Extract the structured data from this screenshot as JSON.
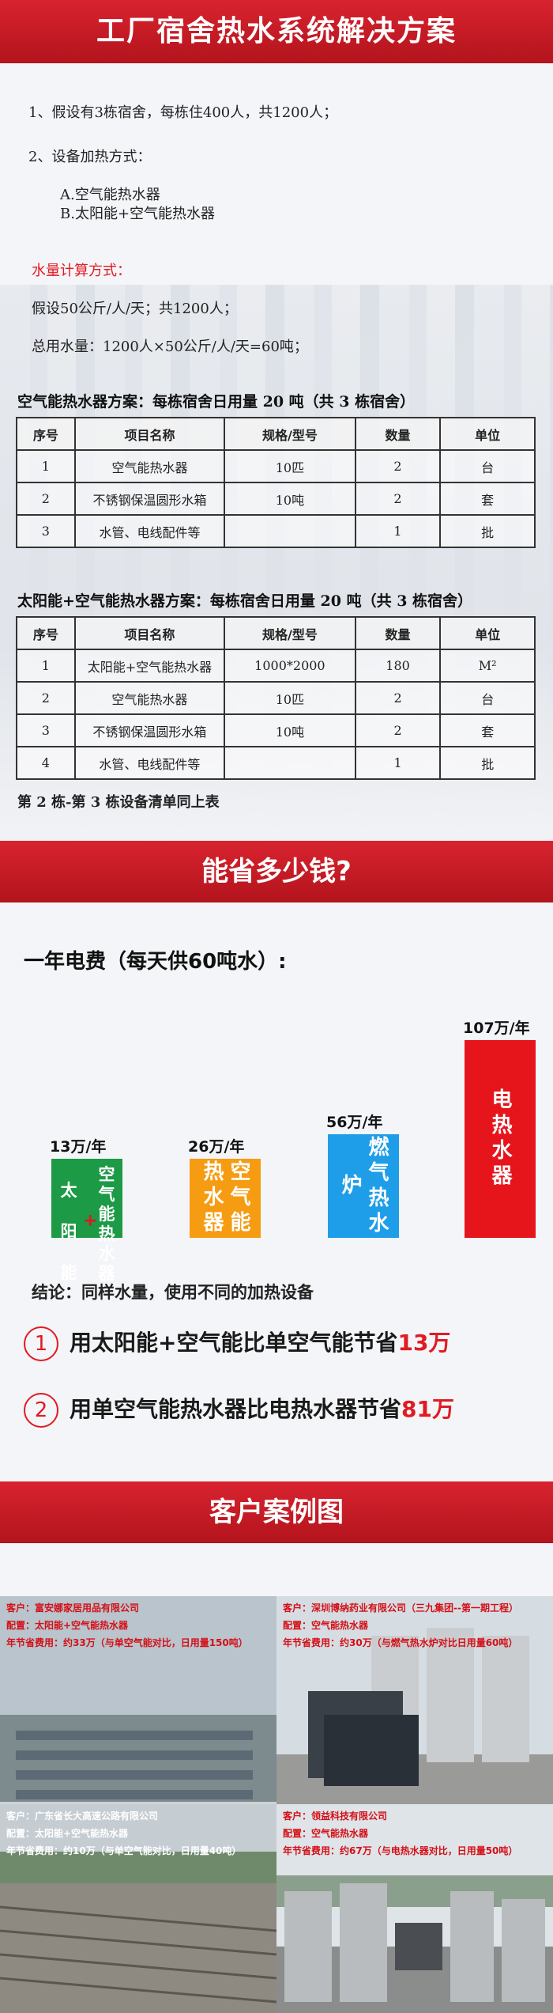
{
  "banners": {
    "top": "工厂宿舍热水系统解决方案",
    "savings": "能省多少钱?",
    "cases": "客户案例图"
  },
  "intro": {
    "line1": "1、假设有3栋宿舍，每栋住400人，共1200人；",
    "line2": "2、设备加热方式：",
    "optA": "A.空气能热水器",
    "optB": "B.太阳能+空气能热水器",
    "calc_title": "水量计算方式：",
    "calc1": "假设50公斤/人/天；共1200人；",
    "calc2": "总用水量：1200人×50公斤/人/天=60吨；"
  },
  "table1": {
    "title": "空气能热水器方案：每栋宿舍日用量 20 吨（共 3 栋宿舍）",
    "headers": [
      "序号",
      "项目名称",
      "规格/型号",
      "数量",
      "单位"
    ],
    "rows": [
      [
        "1",
        "空气能热水器",
        "10匹",
        "2",
        "台"
      ],
      [
        "2",
        "不锈钢保温圆形水箱",
        "10吨",
        "2",
        "套"
      ],
      [
        "3",
        "水管、电线配件等",
        "",
        "1",
        "批"
      ]
    ]
  },
  "table2": {
    "title": "太阳能+空气能热水器方案：每栋宿舍日用量 20 吨（共 3 栋宿舍）",
    "headers": [
      "序号",
      "项目名称",
      "规格/型号",
      "数量",
      "单位"
    ],
    "rows": [
      [
        "1",
        "太阳能+空气能热水器",
        "1000*2000",
        "180",
        "M²"
      ],
      [
        "2",
        "空气能热水器",
        "10匹",
        "2",
        "台"
      ],
      [
        "3",
        "不锈钢保温圆形水箱",
        "10吨",
        "2",
        "套"
      ],
      [
        "4",
        "水管、电线配件等",
        "",
        "1",
        "批"
      ]
    ]
  },
  "note": "第 2 栋-第 3 栋设备清单同上表",
  "fee_title": "一年电费（每天供60吨水）:",
  "chart_data": {
    "type": "bar",
    "categories": [
      "太阳能+空气能热水器",
      "空气能热水器",
      "燃气热水炉",
      "电热水器"
    ],
    "values": [
      13,
      26,
      56,
      107
    ],
    "labels": [
      "13万/年",
      "26万/年",
      "56万/年",
      "107万/年"
    ],
    "colors": [
      "#1c9a46",
      "#f59c12",
      "#1e9ee8",
      "#e6151c"
    ],
    "title": "一年电费（每天供60吨水）:",
    "unit": "万/年"
  },
  "bars": {
    "b1_left": "太阳能",
    "b1_plus": "+",
    "b1_right": "空气能热水器",
    "b2": "空气能热水器",
    "b3": "燃气热水炉",
    "b4": "电热水器"
  },
  "conclusion": "结论：同样水量，使用不同的加热设备",
  "savings": {
    "s1_num": "1",
    "s1_text": "用太阳能+空气能比单空气能节省",
    "s1_amount": "13万",
    "s2_num": "2",
    "s2_text": "用单空气能热水器比电热水器节省",
    "s2_amount": "81万"
  },
  "cases": [
    {
      "client": "客户：富安娜家居用品有限公司",
      "config": "配置：太阳能+空气能热水器",
      "saving": "年节省费用：约33万（与单空气能对比，日用量150吨）"
    },
    {
      "client": "客户：深圳博纳药业有限公司（三九集团--第一期工程）",
      "config": "配置：空气能热水器",
      "saving": "年节省费用：约30万（与燃气热水炉对比日用量60吨）"
    },
    {
      "client": "客户：广东省长大高速公路有限公司",
      "config": "配置：太阳能+空气能热水器",
      "saving": "年节省费用：约10万（与单空气能对比，日用量40吨）"
    },
    {
      "client": "客户：领益科技有限公司",
      "config": "配置：空气能热水器",
      "saving": "年节省费用：约67万（与电热水器对比，日用量50吨）"
    }
  ]
}
